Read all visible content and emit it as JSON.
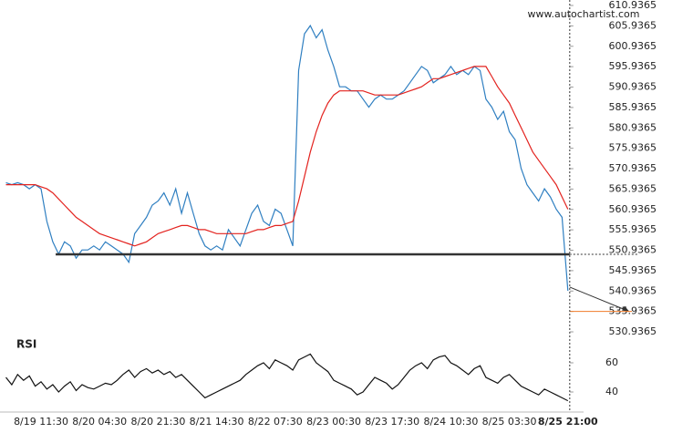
{
  "chart_data": [
    {
      "type": "line",
      "annotation": "www.autochartist.com",
      "categories": [
        null,
        null,
        null,
        null,
        null,
        null,
        "8/19 11:30",
        null,
        null,
        null,
        null,
        null,
        null,
        null,
        null,
        null,
        "8/20 04:30",
        null,
        null,
        null,
        null,
        null,
        null,
        null,
        null,
        null,
        "8/20 21:30",
        null,
        null,
        null,
        null,
        null,
        null,
        null,
        null,
        null,
        "8/21 14:30",
        null,
        null,
        null,
        null,
        null,
        null,
        null,
        null,
        null,
        "8/22 07:30",
        null,
        null,
        null,
        null,
        null,
        null,
        null,
        null,
        null,
        "8/23 00:30",
        null,
        null,
        null,
        null,
        null,
        null,
        null,
        null,
        null,
        "8/23 17:30",
        null,
        null,
        null,
        null,
        null,
        null,
        null,
        null,
        null,
        "8/24 10:30",
        null,
        null,
        null,
        null,
        null,
        null,
        null,
        null,
        null,
        "8/25 03:30",
        null,
        null,
        null,
        null,
        null,
        null,
        null,
        null,
        null,
        "8/25 21:00"
      ],
      "series": [
        {
          "color": "#2f7fc1",
          "values": [
            567.5,
            567,
            567.5,
            567,
            566,
            567,
            566,
            558,
            553,
            550,
            553,
            552,
            549,
            551,
            551,
            552,
            551,
            553,
            552,
            551,
            550,
            548,
            555,
            557,
            559,
            562,
            563,
            565,
            562,
            566,
            560,
            565,
            560,
            555,
            552,
            551,
            552,
            551,
            556,
            554,
            552,
            556,
            560,
            562,
            558,
            557,
            561,
            560,
            556,
            552,
            595,
            604,
            606,
            603,
            605,
            600,
            596,
            591,
            591,
            590,
            590,
            588,
            586,
            588,
            589,
            588,
            588,
            589,
            590,
            592,
            594,
            596,
            595,
            592,
            593,
            594,
            596,
            594,
            595,
            594,
            596,
            595,
            588,
            586,
            583,
            585,
            580,
            578,
            571,
            567,
            565,
            563,
            566,
            564,
            561,
            559,
            541
          ]
        },
        {
          "color": "#e3231f",
          "values": [
            567,
            567,
            567,
            567,
            567,
            567,
            566.5,
            566,
            565,
            563.5,
            562,
            560.5,
            559,
            558,
            557,
            556,
            555,
            554.5,
            554,
            553.5,
            553,
            552.5,
            552,
            552.5,
            553,
            554,
            555,
            555.5,
            556,
            556.5,
            557,
            557,
            556.5,
            556,
            556,
            555.5,
            555,
            555,
            555,
            555,
            555,
            555,
            555.5,
            556,
            556,
            556.5,
            557,
            557,
            557.5,
            558,
            563,
            569,
            575,
            580,
            584,
            587,
            589,
            590,
            590,
            590,
            590,
            590,
            589.5,
            589,
            589,
            589,
            589,
            589,
            589.5,
            590,
            590.5,
            591,
            592,
            593,
            593,
            593.5,
            594,
            594.5,
            595,
            595.5,
            596,
            596,
            596,
            593.5,
            591,
            589,
            587,
            584,
            581,
            578,
            575,
            573,
            571,
            569,
            567,
            564,
            561
          ]
        }
      ],
      "level": 549.9365,
      "projection": [
        541.9,
        535.9365
      ],
      "target_color": "#f07c2a",
      "ylim": [
        529.6,
        612.28
      ],
      "yticks": [
        530.9365,
        535.9365,
        540.9365,
        545.9365,
        550.9365,
        555.9365,
        560.9365,
        565.9365,
        570.9365,
        575.9365,
        580.9365,
        585.9365,
        590.9365,
        595.9365,
        600.9365,
        605.9365,
        610.9365
      ]
    },
    {
      "type": "line",
      "title": "RSI",
      "series": [
        {
          "color": "#111111",
          "values": [
            50,
            45,
            52,
            48,
            51,
            44,
            47,
            42,
            45,
            40,
            44,
            47,
            41,
            45,
            43,
            42,
            44,
            46,
            45,
            48,
            52,
            55,
            50,
            54,
            56,
            53,
            55,
            52,
            54,
            50,
            52,
            48,
            44,
            40,
            36,
            38,
            40,
            42,
            44,
            46,
            48,
            52,
            55,
            58,
            60,
            56,
            62,
            60,
            58,
            55,
            62,
            64,
            66,
            60,
            57,
            54,
            48,
            46,
            44,
            42,
            38,
            40,
            45,
            50,
            48,
            46,
            42,
            45,
            50,
            55,
            58,
            60,
            56,
            62,
            64,
            65,
            60,
            58,
            55,
            52,
            56,
            58,
            50,
            48,
            46,
            50,
            52,
            48,
            44,
            42,
            40,
            38,
            42,
            40,
            38,
            36,
            34
          ]
        }
      ],
      "ylim": [
        28.75,
        77.5
      ],
      "yticks": [
        40,
        60
      ]
    }
  ]
}
